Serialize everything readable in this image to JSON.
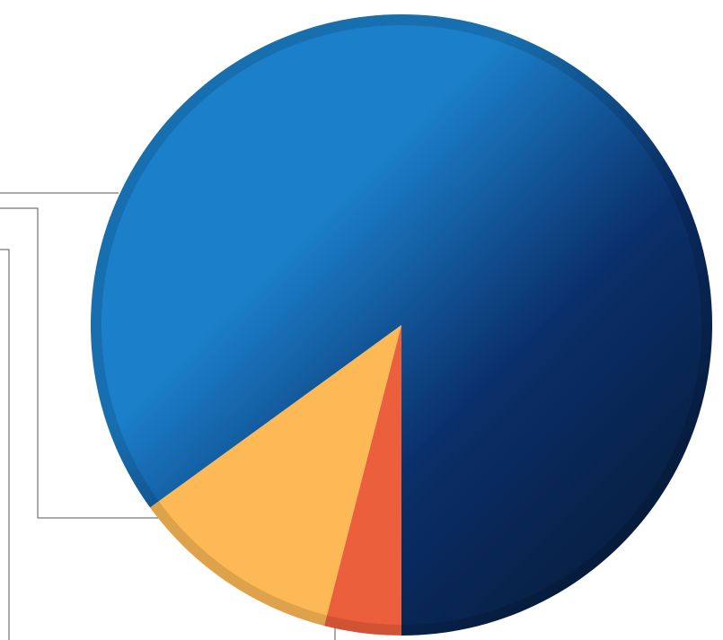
{
  "chart_data": {
    "type": "pie",
    "values": [
      4,
      11,
      85
    ],
    "colors": [
      "#ec5f3c",
      "#fdb955",
      "#1b7fc9"
    ],
    "start_angle": 180
  }
}
